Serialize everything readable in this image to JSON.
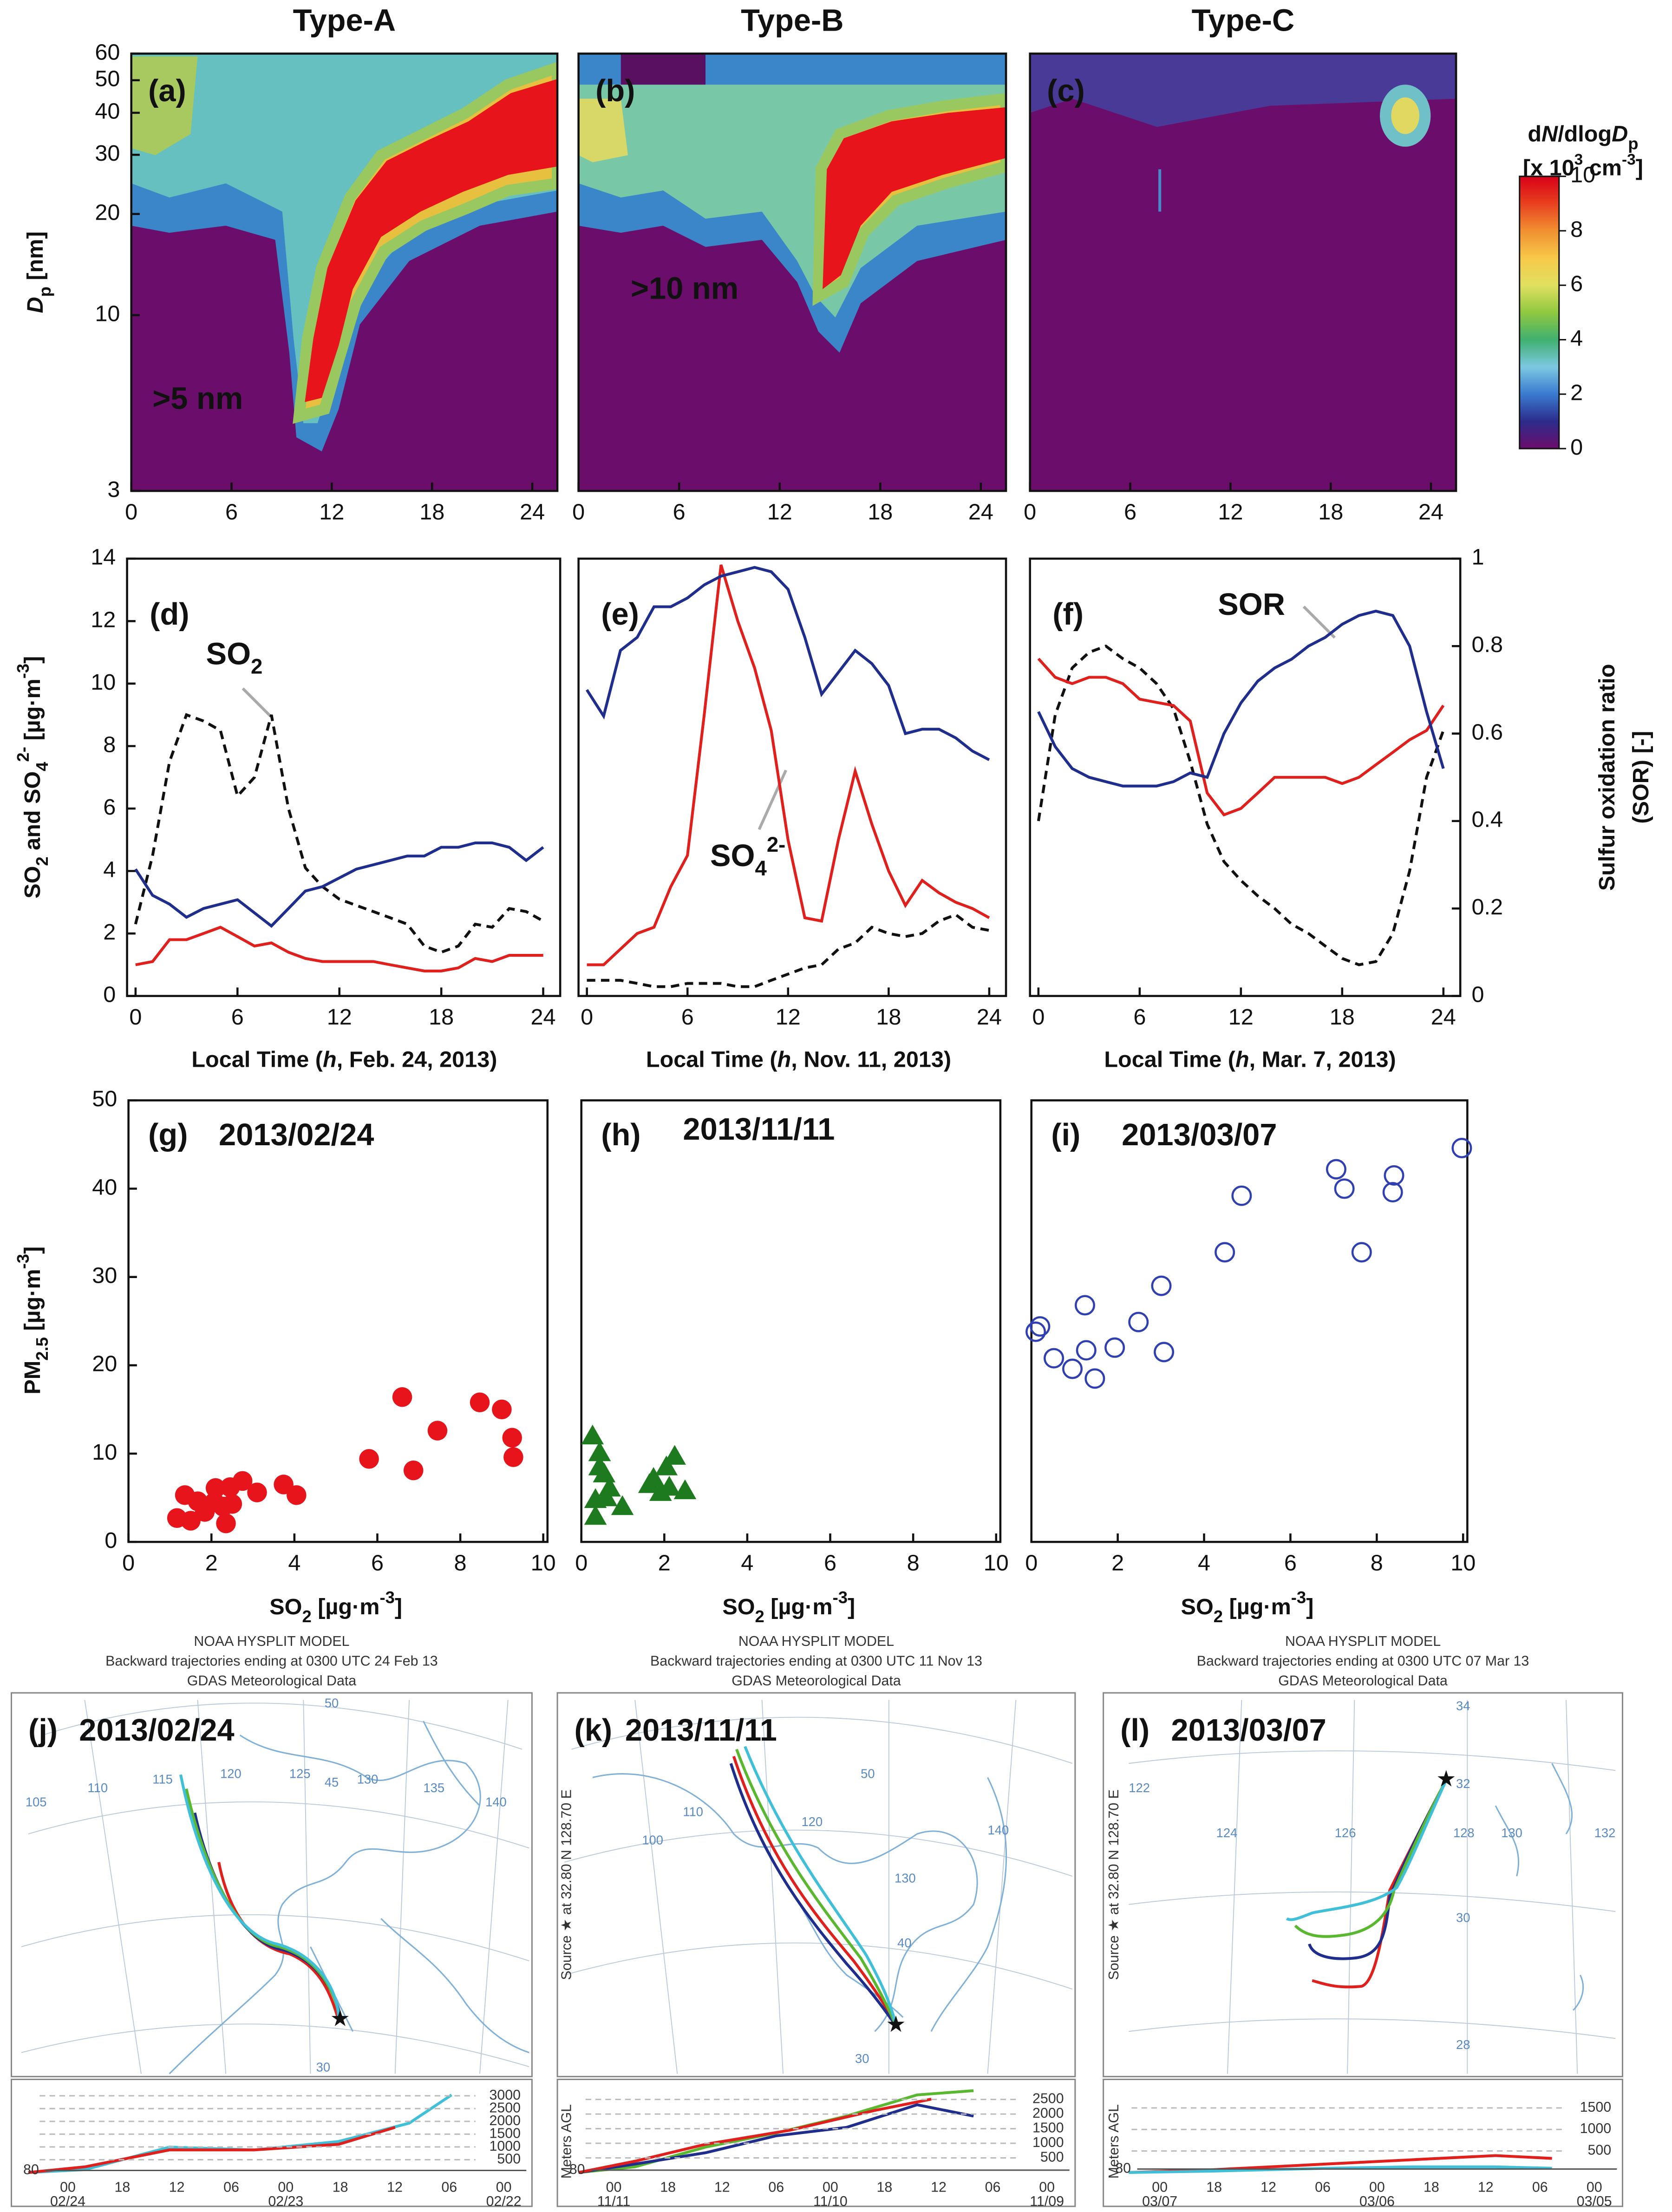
{
  "chart_data": [
    {
      "type": "heatmap",
      "title": "Type-A",
      "panel_label": "(a)",
      "annotation": ">5 nm",
      "xlim": [
        0,
        25.5
      ],
      "xticks": [
        0,
        6,
        12,
        18,
        24
      ],
      "ylim": [
        3,
        60
      ],
      "log_y": true,
      "yticks": [
        3,
        10,
        20,
        30,
        40,
        50,
        60
      ],
      "ylabel": [
        "D",
        "p",
        " [nm]"
      ],
      "colorbar": {
        "title": [
          "d",
          "N",
          "/dlog",
          "D",
          "p"
        ],
        "unit": [
          "[x 10",
          "3",
          " cm",
          "-3",
          "]"
        ],
        "lim": [
          0,
          10
        ],
        "ticks": [
          0,
          2,
          4,
          6,
          8,
          10
        ]
      }
    },
    {
      "type": "heatmap",
      "title": "Type-B",
      "panel_label": "(b)",
      "annotation": ">10 nm",
      "xlim": [
        0,
        25.5
      ],
      "xticks": [
        0,
        6,
        12,
        18,
        24
      ],
      "ylim": [
        3,
        60
      ],
      "log_y": true
    },
    {
      "type": "heatmap",
      "title": "Type-C",
      "panel_label": "(c)",
      "xlim": [
        0,
        25.5
      ],
      "xticks": [
        0,
        6,
        12,
        18,
        24
      ],
      "ylim": [
        3,
        60
      ],
      "log_y": true
    },
    {
      "type": "line",
      "panel_label": "(d)",
      "x": [
        0,
        1,
        2,
        3,
        4,
        5,
        6,
        7,
        8,
        9,
        10,
        11,
        12,
        13,
        14,
        15,
        16,
        17,
        18,
        19,
        20,
        21,
        22,
        23,
        24
      ],
      "xlim": [
        -0.5,
        25
      ],
      "xticks": [
        0,
        6,
        12,
        18,
        24
      ],
      "ylim": [
        0,
        14
      ],
      "yticks": [
        0,
        2,
        4,
        6,
        8,
        10,
        12,
        14
      ],
      "y2lim": [
        0,
        1
      ],
      "xlabel": [
        "Local Time (",
        "h",
        ", Feb. 24, 2013)"
      ],
      "ylabel": [
        "SO",
        "2",
        " and SO",
        "4",
        "2-",
        " [µg·m",
        "-3",
        "]"
      ],
      "annotation": [
        "SO",
        "2"
      ],
      "series": [
        {
          "color": "#111111",
          "line_style": "dashed",
          "values": [
            2.3,
            4.5,
            7.5,
            9.0,
            8.8,
            8.5,
            6.4,
            7.0,
            9.0,
            6.0,
            4.1,
            3.5,
            3.1,
            2.9,
            2.7,
            2.5,
            2.3,
            1.6,
            1.4,
            1.6,
            2.3,
            2.2,
            2.8,
            2.7,
            2.4
          ]
        },
        {
          "color": "#e0201c",
          "line_style": "solid",
          "values": [
            1.0,
            1.1,
            1.8,
            1.8,
            2.0,
            2.2,
            1.9,
            1.6,
            1.7,
            1.4,
            1.2,
            1.1,
            1.1,
            1.1,
            1.1,
            1.0,
            0.9,
            0.8,
            0.8,
            0.9,
            1.2,
            1.1,
            1.3,
            1.3,
            1.3
          ]
        },
        {
          "color": "#1f2d8c",
          "line_style": "solid",
          "axis": "y2",
          "values": [
            0.29,
            0.23,
            0.21,
            0.18,
            0.2,
            0.21,
            0.22,
            0.19,
            0.16,
            0.2,
            0.24,
            0.25,
            0.27,
            0.29,
            0.3,
            0.31,
            0.32,
            0.32,
            0.34,
            0.34,
            0.35,
            0.35,
            0.34,
            0.31,
            0.34
          ]
        }
      ]
    },
    {
      "type": "line",
      "panel_label": "(e)",
      "x": [
        0,
        1,
        2,
        3,
        4,
        5,
        6,
        7,
        8,
        9,
        10,
        11,
        12,
        13,
        14,
        15,
        16,
        17,
        18,
        19,
        20,
        21,
        22,
        23,
        24
      ],
      "xlim": [
        -0.5,
        25
      ],
      "xticks": [
        0,
        6,
        12,
        18,
        24
      ],
      "ylim": [
        0,
        14
      ],
      "y2lim": [
        0,
        1
      ],
      "xlabel": [
        "Local Time (",
        "h",
        ", Nov. 11, 2013)"
      ],
      "annotation": [
        "SO",
        "4",
        "2-"
      ],
      "series": [
        {
          "color": "#111111",
          "line_style": "dashed",
          "values": [
            0.5,
            0.5,
            0.5,
            0.4,
            0.3,
            0.3,
            0.4,
            0.4,
            0.4,
            0.3,
            0.3,
            0.5,
            0.7,
            0.9,
            1.0,
            1.5,
            1.7,
            2.2,
            2.0,
            1.9,
            2.0,
            2.4,
            2.6,
            2.2,
            2.1
          ]
        },
        {
          "color": "#e0201c",
          "line_style": "solid",
          "values": [
            1.0,
            1.0,
            1.5,
            2.0,
            2.2,
            3.5,
            4.5,
            9.0,
            13.8,
            12.0,
            10.5,
            8.5,
            5.0,
            2.5,
            2.4,
            5.0,
            7.2,
            5.5,
            4.0,
            2.9,
            3.7,
            3.3,
            3.0,
            2.8,
            2.5
          ]
        },
        {
          "color": "#1f2d8c",
          "line_style": "solid",
          "axis": "y2",
          "values": [
            0.7,
            0.64,
            0.79,
            0.82,
            0.89,
            0.89,
            0.91,
            0.94,
            0.96,
            0.97,
            0.98,
            0.97,
            0.93,
            0.82,
            0.69,
            0.74,
            0.79,
            0.76,
            0.71,
            0.6,
            0.61,
            0.61,
            0.59,
            0.56,
            0.54
          ]
        }
      ]
    },
    {
      "type": "line",
      "panel_label": "(f)",
      "x": [
        0,
        1,
        2,
        3,
        4,
        5,
        6,
        7,
        8,
        9,
        10,
        11,
        12,
        13,
        14,
        15,
        16,
        17,
        18,
        19,
        20,
        21,
        22,
        23,
        24
      ],
      "xlim": [
        -0.5,
        25
      ],
      "xticks": [
        0,
        6,
        12,
        18,
        24
      ],
      "ylim": [
        0,
        14
      ],
      "y2lim": [
        0,
        1
      ],
      "y2ticks": [
        0,
        0.2,
        0.4,
        0.6,
        0.8,
        1
      ],
      "xlabel": [
        "Local Time (",
        "h",
        ", Mar. 7, 2013)"
      ],
      "y2label": [
        "Sulfur oxidation ratio",
        "(SOR) [-]"
      ],
      "annotation": [
        "SOR"
      ],
      "series": [
        {
          "color": "#111111",
          "line_style": "dashed",
          "values": [
            5.6,
            9.0,
            10.5,
            11.0,
            11.2,
            10.8,
            10.5,
            10.0,
            9.2,
            7.5,
            5.5,
            4.3,
            3.7,
            3.2,
            2.8,
            2.3,
            2.0,
            1.6,
            1.2,
            1.0,
            1.1,
            2.0,
            4.0,
            7.0,
            8.5
          ]
        },
        {
          "color": "#e0201c",
          "line_style": "solid",
          "values": [
            10.8,
            10.2,
            10.0,
            10.2,
            10.2,
            10.0,
            9.5,
            9.4,
            9.3,
            8.8,
            6.5,
            5.8,
            6.0,
            6.5,
            7.0,
            7.0,
            7.0,
            7.0,
            6.8,
            7.0,
            7.4,
            7.8,
            8.2,
            8.5,
            9.3
          ]
        },
        {
          "color": "#1f2d8c",
          "line_style": "solid",
          "axis": "y2",
          "values": [
            0.65,
            0.57,
            0.52,
            0.5,
            0.49,
            0.48,
            0.48,
            0.48,
            0.49,
            0.51,
            0.5,
            0.6,
            0.67,
            0.72,
            0.75,
            0.77,
            0.8,
            0.82,
            0.85,
            0.87,
            0.88,
            0.87,
            0.8,
            0.65,
            0.52
          ]
        }
      ]
    },
    {
      "type": "scatter",
      "panel_label": "(g)",
      "title": "2013/02/24",
      "marker": "circle",
      "color": "#e8141c",
      "xlim": [
        0,
        10
      ],
      "xticks": [
        0,
        2,
        4,
        6,
        8,
        10
      ],
      "ylim": [
        0,
        50
      ],
      "yticks": [
        0,
        10,
        20,
        30,
        40,
        50
      ],
      "xlabel": [
        "SO",
        "2",
        " [µg·m",
        "-3",
        "]"
      ],
      "ylabel": [
        "PM",
        "2.5",
        " [µg·m",
        "-3",
        "]"
      ],
      "x": [
        1.17,
        1.36,
        1.67,
        1.5,
        2.07,
        2.1,
        2.35,
        2.45,
        2.5,
        2.75,
        3.1,
        3.74,
        4.05,
        2.28,
        1.84,
        5.8,
        6.6,
        6.87,
        7.45,
        8.47,
        9.0,
        9.25,
        9.28
      ],
      "values": [
        2.7,
        5.3,
        4.6,
        2.4,
        4.5,
        6.1,
        2.1,
        6.2,
        4.3,
        6.9,
        5.6,
        6.5,
        5.3,
        4.0,
        3.4,
        9.4,
        16.4,
        8.1,
        12.6,
        15.8,
        15.0,
        11.8,
        9.6
      ]
    },
    {
      "type": "scatter",
      "panel_label": "(h)",
      "title": "2013/11/11",
      "marker": "triangle",
      "color": "#1e7a1e",
      "xlim": [
        0,
        10
      ],
      "xticks": [
        0,
        2,
        4,
        6,
        8,
        10
      ],
      "ylim": [
        0,
        50
      ],
      "xlabel": [
        "SO",
        "2",
        " [µg·m",
        "-3",
        "]"
      ],
      "x": [
        0.27,
        0.44,
        0.55,
        0.34,
        0.6,
        0.34,
        0.99,
        0.68,
        1.74,
        2.05,
        2.12,
        1.91,
        2.5,
        1.64,
        2.25,
        0.44
      ],
      "values": [
        12.0,
        10.1,
        7.7,
        4.8,
        5.0,
        2.9,
        4.0,
        6.1,
        7.2,
        8.5,
        6.2,
        5.6,
        5.8,
        6.5,
        9.7,
        8.5
      ]
    },
    {
      "type": "scatter",
      "panel_label": "(i)",
      "title": "2013/03/07",
      "marker": "open-circle",
      "color": "#3040b0",
      "xlim": [
        0,
        10
      ],
      "xticks": [
        0,
        2,
        4,
        6,
        8,
        10
      ],
      "ylim": [
        0,
        50
      ],
      "xlabel": [
        "SO",
        "2",
        " [µg·m",
        "-3",
        "]"
      ],
      "x": [
        0.1,
        0.2,
        0.52,
        0.95,
        1.24,
        1.27,
        1.47,
        1.93,
        2.48,
        3.01,
        3.07,
        4.48,
        4.87,
        7.06,
        7.25,
        7.65,
        8.4,
        8.37,
        9.97
      ],
      "values": [
        23.8,
        24.4,
        20.8,
        19.6,
        26.8,
        21.7,
        18.5,
        22.0,
        24.9,
        29.0,
        21.5,
        32.8,
        39.2,
        42.2,
        40.0,
        32.8,
        41.5,
        39.6,
        44.6
      ]
    }
  ],
  "trajectories": [
    {
      "header": [
        "NOAA HYSPLIT MODEL",
        "Backward trajectories ending at 0300 UTC 24 Feb 13",
        "GDAS Meteorological Data"
      ],
      "label": "(j)",
      "date": "2013/02/24",
      "map_labels": [
        "105",
        "110",
        "115",
        "120",
        "125",
        "130",
        "135",
        "140",
        "45",
        "50",
        "30"
      ],
      "altitude_lim": [
        0,
        3200
      ],
      "altitude_ticks": [
        3000,
        2500,
        2000,
        1500,
        1000,
        500
      ],
      "start_height": 80,
      "time_labels": [
        "00",
        "18",
        "12",
        "06",
        "00",
        "18",
        "12",
        "06",
        "00"
      ],
      "date_labels": [
        "02/24",
        "02/23",
        "02/22"
      ]
    },
    {
      "header": [
        "NOAA HYSPLIT MODEL",
        "Backward trajectories ending at 0300 UTC 11 Nov 13",
        "GDAS Meteorological Data"
      ],
      "label": "(k)",
      "date": "2013/11/11",
      "map_labels": [
        "100",
        "110",
        "120",
        "130",
        "140",
        "50",
        "40",
        "30"
      ],
      "source": "Source ★ at 32.80 N 128.70 E",
      "altitude_title": "Meters AGL",
      "altitude_lim": [
        0,
        2800
      ],
      "altitude_ticks": [
        2500,
        2000,
        1500,
        1000,
        500
      ],
      "start_height": 80,
      "time_labels": [
        "00",
        "18",
        "12",
        "06",
        "00",
        "18",
        "12",
        "06",
        "00"
      ],
      "date_labels": [
        "11/11",
        "11/10",
        "11/09"
      ]
    },
    {
      "header": [
        "NOAA HYSPLIT MODEL",
        "Backward trajectories ending at 0300 UTC 07 Mar 13",
        "GDAS Meteorological Data"
      ],
      "label": "(l)",
      "date": "2013/03/07",
      "map_labels": [
        "122",
        "124",
        "126",
        "128",
        "130",
        "132",
        "34",
        "32",
        "30",
        "28"
      ],
      "source": "Source ★ at 32.80 N 128.70 E",
      "altitude_title": "Meters AGL",
      "altitude_lim": [
        0,
        1900
      ],
      "altitude_ticks": [
        1500,
        1000,
        500
      ],
      "start_height": 80,
      "time_labels": [
        "00",
        "18",
        "12",
        "06",
        "00",
        "18",
        "12",
        "06",
        "00"
      ],
      "date_labels": [
        "03/07",
        "03/06",
        "03/05"
      ]
    }
  ]
}
